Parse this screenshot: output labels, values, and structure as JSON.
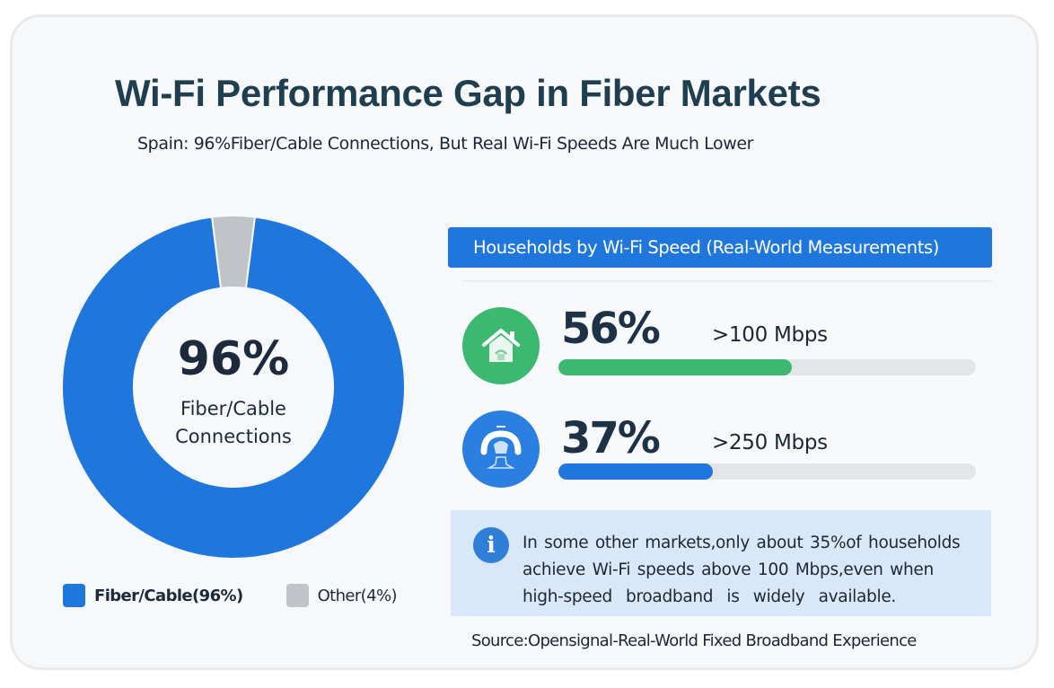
{
  "header": {
    "title": "Wi-Fi Performance Gap in Fiber Markets",
    "subtitle": "Spain: 96%Fiber/Cable Connections, But Real Wi-Fi Speeds Are Much Lower"
  },
  "chart_data": [
    {
      "type": "pie",
      "title": "96%",
      "center_value": "96%",
      "center_label_lines": [
        "Fiber/Cable",
        "Connections"
      ],
      "categories": [
        "Fiber/Cable",
        "Other"
      ],
      "values": [
        96,
        4
      ],
      "colors": [
        "#1f77dd",
        "#c0c4c8"
      ],
      "legend": [
        {
          "label": "Fiber/Cable(96%)",
          "color": "#1f77dd"
        },
        {
          "label": "Other(4%)",
          "color": "#c0c4c8"
        }
      ],
      "legend_placement": "bottom"
    },
    {
      "type": "bar",
      "title": "Households by Wi-Fi Speed (Real-World  Measurements)",
      "categories": [
        ">100 Mbps",
        ">250 Mbps"
      ],
      "values": [
        56,
        37
      ],
      "value_labels": [
        "56%",
        "37%"
      ],
      "ylim": [
        0,
        100
      ],
      "colors": [
        "#3cb971",
        "#1f77dd"
      ],
      "icons": [
        "house-wifi-icon",
        "router-speed-icon"
      ]
    }
  ],
  "note": {
    "icon": "info-icon",
    "icon_glyph": "i",
    "lines": [
      "In some other markets,only about 35%of households",
      "achieve Wi-Fi speeds above 100 Mbps,even when",
      "high-speed  broadband  is  widely  available."
    ]
  },
  "source": "Source:Opensignal-Real-World Fixed Broadband Experience"
}
